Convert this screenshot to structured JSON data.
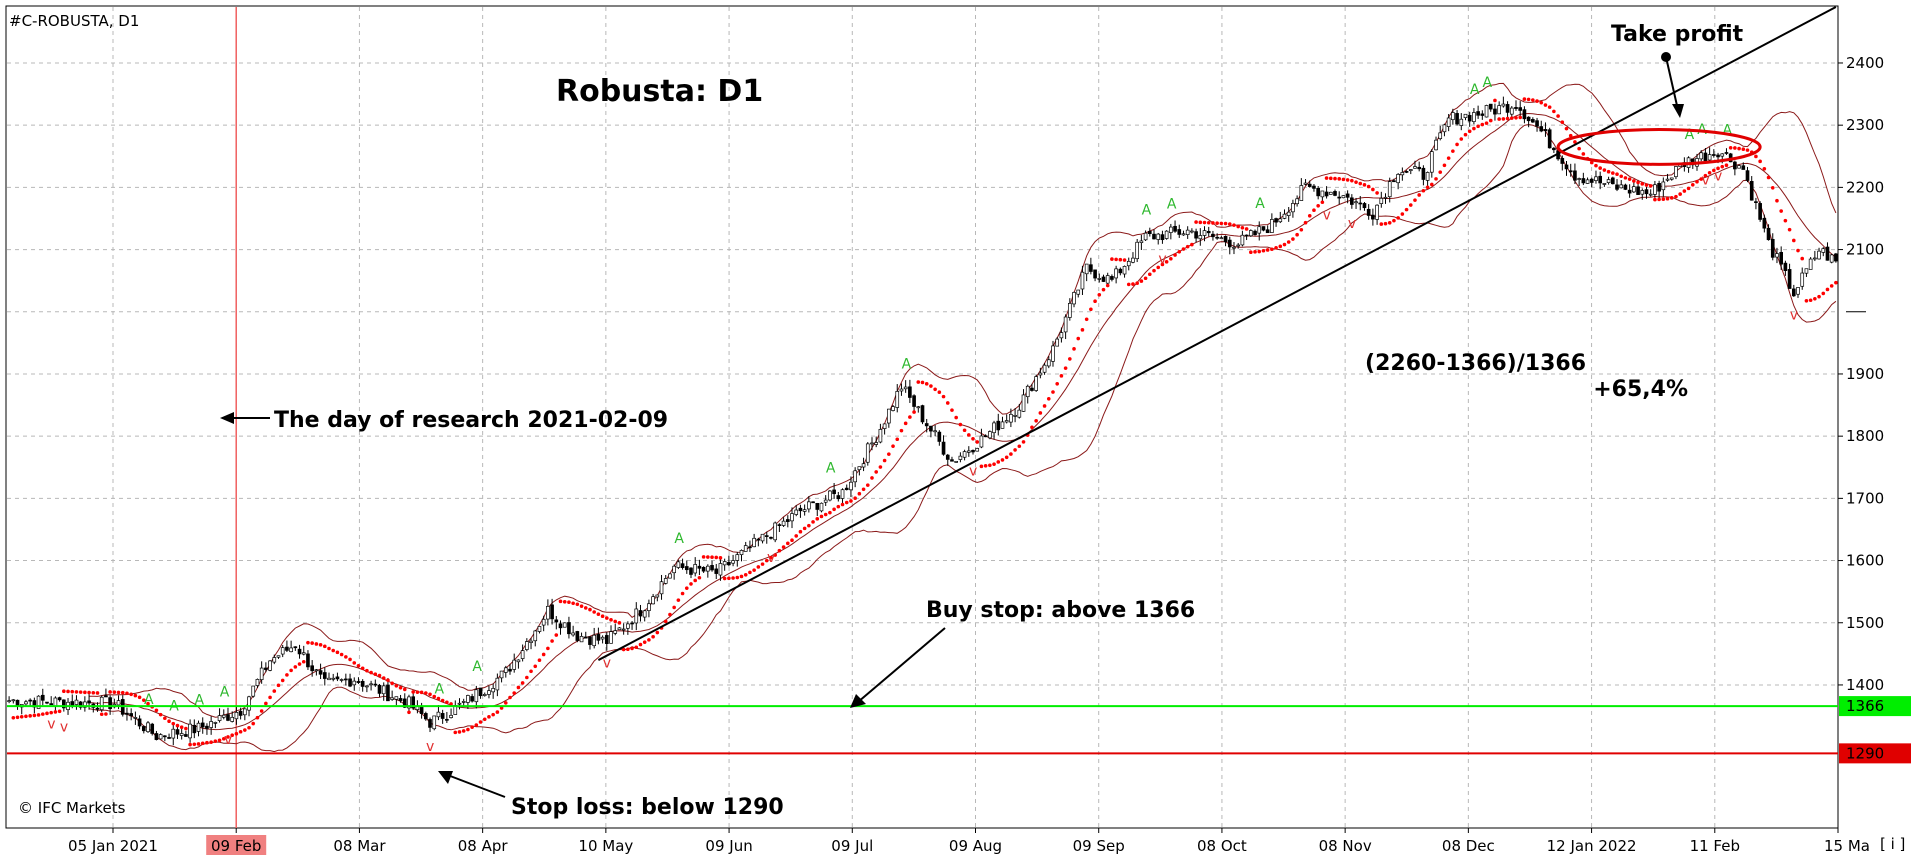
{
  "header": {
    "symbol_label": "#C-ROBUSTA, D1"
  },
  "footer": {
    "copyright": "© IFC Markets"
  },
  "chart_data": {
    "type": "candlestick",
    "title": "Robusta: D1",
    "ylim": [
      1170,
      2490
    ],
    "y_ticks": [
      2400,
      2300,
      2200,
      2100,
      1900,
      1800,
      1700,
      1600,
      1500,
      1400
    ],
    "x_tick_labels": [
      "05 Jan 2021",
      "09 Feb",
      "08 Mar",
      "08 Apr",
      "10 May",
      "09 Jun",
      "09 Jul",
      "09 Aug",
      "09 Sep",
      "08 Oct",
      "08 Nov",
      "08 Dec",
      "12 Jan 2022",
      "11 Feb",
      "15 Ma"
    ],
    "research_day_label": "09 Feb",
    "levels": [
      {
        "name": "buy-stop",
        "value": 1366,
        "label": "1366",
        "color": "#00ee00"
      },
      {
        "name": "stop-loss",
        "value": 1290,
        "label": "1290",
        "color": "#e00000"
      }
    ],
    "price_path": [
      {
        "t": 0,
        "p": 1375
      },
      {
        "t": 25,
        "p": 1370
      },
      {
        "t": 35,
        "p": 1318
      },
      {
        "t": 45,
        "p": 1330
      },
      {
        "t": 55,
        "p": 1360
      },
      {
        "t": 62,
        "p": 1440
      },
      {
        "t": 68,
        "p": 1465
      },
      {
        "t": 75,
        "p": 1400
      },
      {
        "t": 82,
        "p": 1410
      },
      {
        "t": 95,
        "p": 1370
      },
      {
        "t": 100,
        "p": 1340
      },
      {
        "t": 108,
        "p": 1370
      },
      {
        "t": 118,
        "p": 1420
      },
      {
        "t": 128,
        "p": 1520
      },
      {
        "t": 135,
        "p": 1480
      },
      {
        "t": 142,
        "p": 1470
      },
      {
        "t": 150,
        "p": 1520
      },
      {
        "t": 158,
        "p": 1590
      },
      {
        "t": 168,
        "p": 1580
      },
      {
        "t": 178,
        "p": 1630
      },
      {
        "t": 188,
        "p": 1680
      },
      {
        "t": 198,
        "p": 1710
      },
      {
        "t": 206,
        "p": 1800
      },
      {
        "t": 212,
        "p": 1880
      },
      {
        "t": 218,
        "p": 1820
      },
      {
        "t": 224,
        "p": 1760
      },
      {
        "t": 232,
        "p": 1800
      },
      {
        "t": 240,
        "p": 1850
      },
      {
        "t": 248,
        "p": 1940
      },
      {
        "t": 256,
        "p": 2070
      },
      {
        "t": 262,
        "p": 2050
      },
      {
        "t": 270,
        "p": 2120
      },
      {
        "t": 280,
        "p": 2130
      },
      {
        "t": 292,
        "p": 2110
      },
      {
        "t": 300,
        "p": 2140
      },
      {
        "t": 308,
        "p": 2200
      },
      {
        "t": 316,
        "p": 2190
      },
      {
        "t": 324,
        "p": 2160
      },
      {
        "t": 330,
        "p": 2230
      },
      {
        "t": 336,
        "p": 2220
      },
      {
        "t": 342,
        "p": 2310
      },
      {
        "t": 350,
        "p": 2320
      },
      {
        "t": 358,
        "p": 2335
      },
      {
        "t": 364,
        "p": 2290
      },
      {
        "t": 372,
        "p": 2220
      },
      {
        "t": 382,
        "p": 2200
      },
      {
        "t": 390,
        "p": 2190
      },
      {
        "t": 398,
        "p": 2240
      },
      {
        "t": 406,
        "p": 2260
      },
      {
        "t": 412,
        "p": 2230
      },
      {
        "t": 418,
        "p": 2110
      },
      {
        "t": 424,
        "p": 2030
      },
      {
        "t": 430,
        "p": 2100
      },
      {
        "t": 434,
        "p": 2080
      }
    ],
    "trendline": {
      "from": {
        "t": 140,
        "p": 1440
      },
      "to": {
        "t": 434,
        "p": 2490
      }
    },
    "take_profit_zone": {
      "t_center": 392,
      "p_center": 2265,
      "p_range": 28,
      "t_range": 24
    }
  },
  "annotations": {
    "research_day": "The day of research 2021-02-09",
    "buy_stop": "Buy stop: above 1366",
    "stop_loss": "Stop loss: below 1290",
    "take_profit": "Take profit",
    "calc_formula": "(2260-1366)/1366",
    "calc_result": "+65,4%"
  },
  "scrollbar_marker": "[ i ]"
}
